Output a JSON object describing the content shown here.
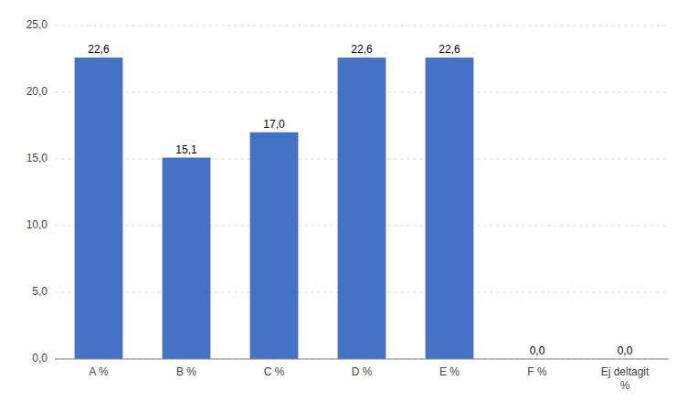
{
  "chart_data": {
    "type": "bar",
    "categories": [
      "A %",
      "B %",
      "C %",
      "D %",
      "E %",
      "F %",
      "Ej deltagit\n%"
    ],
    "values": [
      22.6,
      15.1,
      17.0,
      22.6,
      22.6,
      0.0,
      0.0
    ],
    "value_labels": [
      "22,6",
      "15,1",
      "17,0",
      "22,6",
      "22,6",
      "0,0",
      "0,0"
    ],
    "data_labels": true,
    "color": "#4472C4",
    "ylim": [
      0,
      25
    ],
    "yticks": [
      {
        "value": 0.0,
        "label": "0,0"
      },
      {
        "value": 5.0,
        "label": "5,0"
      },
      {
        "value": 10.0,
        "label": "10,0"
      },
      {
        "value": 15.0,
        "label": "15,0"
      },
      {
        "value": 20.0,
        "label": "20,0"
      },
      {
        "value": 25.0,
        "label": "25,0"
      }
    ],
    "grid": true
  }
}
